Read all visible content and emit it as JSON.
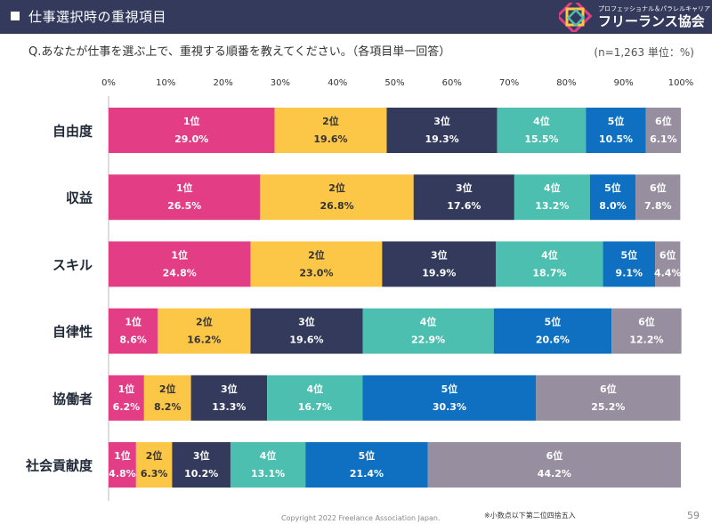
{
  "header": {
    "title": "仕事選択時の重視項目",
    "logo_subtitle": "プロフェッショナル＆パラレルキャリア",
    "logo_name": "フリーランス協会"
  },
  "question": "Q.あなたが仕事を選ぶ上で、重視する順番を教えてください。（各項目単一回答）",
  "sample_note": "(n=1,263 単位：%)",
  "footer": {
    "copyright": "Copyright 2022 Freelance Association Japan.",
    "note": "※小数点以下第二位四捨五入",
    "page_number": "59"
  },
  "colors": {
    "header_bg": "#343a5c",
    "rank_colors": [
      "#e33d86",
      "#fcc647",
      "#343a5c",
      "#4cbfb0",
      "#0f70c2",
      "#978ea0"
    ]
  },
  "chart_data": {
    "type": "bar",
    "orientation": "horizontal",
    "stacked": true,
    "categories": [
      "自由度",
      "収益",
      "スキル",
      "自律性",
      "協働者",
      "社会貢献度"
    ],
    "series": [
      {
        "name": "1位",
        "values": [
          29.0,
          26.5,
          24.8,
          8.6,
          6.2,
          4.8
        ]
      },
      {
        "name": "2位",
        "values": [
          19.6,
          26.8,
          23.0,
          16.2,
          8.2,
          6.3
        ]
      },
      {
        "name": "3位",
        "values": [
          19.3,
          17.6,
          19.9,
          19.6,
          13.3,
          10.2
        ]
      },
      {
        "name": "4位",
        "values": [
          15.5,
          13.2,
          18.7,
          22.9,
          16.7,
          13.1
        ]
      },
      {
        "name": "5位",
        "values": [
          10.5,
          8.0,
          9.1,
          20.6,
          30.3,
          21.4
        ]
      },
      {
        "name": "6位",
        "values": [
          6.1,
          7.8,
          4.4,
          12.2,
          25.2,
          44.2
        ]
      }
    ],
    "xticks": [
      "0%",
      "10%",
      "20%",
      "30%",
      "40%",
      "50%",
      "60%",
      "70%",
      "80%",
      "90%",
      "100%"
    ],
    "xlim": [
      0,
      100
    ],
    "grid": false,
    "legend": "none (rank labels printed inside each segment)"
  }
}
